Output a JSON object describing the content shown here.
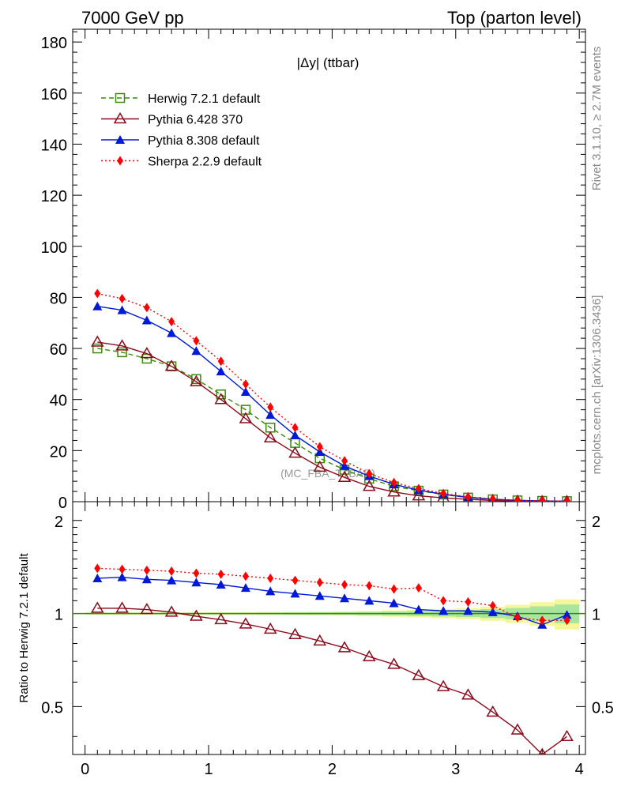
{
  "header": {
    "left": "7000 GeV pp",
    "right": "Top (parton level)"
  },
  "side_text": {
    "rivet": "Rivet 3.1.10, ≥ 2.7M events",
    "mcplots": "mcplots.cern.ch [arXiv:1306.3436]"
  },
  "chart_data": [
    {
      "type": "line",
      "panel": "main",
      "title": "|Δy| (ttbar)",
      "watermark": "(MC_FBA_TTBAR)",
      "xlim": [
        -0.1,
        4.05
      ],
      "ylim": [
        0,
        185
      ],
      "y_ticks": [
        0,
        20,
        40,
        60,
        80,
        100,
        120,
        140,
        160,
        180
      ],
      "x_ticks": [
        0,
        1,
        2,
        3,
        4
      ],
      "grid": false,
      "legend_position": "top-left",
      "x": [
        0.1,
        0.3,
        0.5,
        0.7,
        0.9,
        1.1,
        1.3,
        1.5,
        1.7,
        1.9,
        2.1,
        2.3,
        2.5,
        2.7,
        2.9,
        3.1,
        3.3,
        3.5,
        3.7,
        3.9
      ],
      "series": [
        {
          "name": "Herwig 7.2.1 default",
          "color": "#3a8a0a",
          "line": "dashed",
          "marker": "open-square",
          "values": [
            60,
            58.5,
            56,
            53,
            48,
            42,
            36,
            29,
            23,
            17,
            12.5,
            9,
            6,
            4.3,
            2.8,
            1.6,
            0.9,
            0.5,
            0.3,
            0.2
          ]
        },
        {
          "name": "Pythia 6.428 370",
          "color": "#8b0a1a",
          "line": "solid",
          "marker": "open-triangle",
          "values": [
            62.5,
            61,
            58,
            53,
            47,
            40,
            32.5,
            25,
            19,
            13.5,
            9.5,
            6,
            3.8,
            2.3,
            1.5,
            0.9,
            0.5,
            0.2,
            0.1,
            0.08
          ]
        },
        {
          "name": "Pythia 8.308 default",
          "color": "#0018d8",
          "line": "solid",
          "marker": "filled-triangle",
          "values": [
            76.5,
            75,
            71,
            66,
            59,
            51,
            43,
            34,
            26,
            19.5,
            14,
            10,
            6.8,
            4.5,
            2.9,
            1.7,
            1,
            0.5,
            0.3,
            0.2
          ]
        },
        {
          "name": "Sherpa 2.2.9 default",
          "color": "#ff0000",
          "line": "dotted",
          "marker": "filled-diamond",
          "values": [
            81.5,
            79.5,
            76,
            70.5,
            63,
            55,
            46,
            37,
            29,
            21.5,
            16,
            11,
            7.5,
            5.1,
            3.2,
            1.9,
            1,
            0.5,
            0.3,
            0.2
          ]
        }
      ]
    },
    {
      "type": "line",
      "panel": "ratio",
      "ylabel": "Ratio to Herwig 7.2.1 default",
      "scale": "log",
      "xlim": [
        -0.1,
        4.05
      ],
      "ylim": [
        0.35,
        2.3
      ],
      "y_ticks": [
        0.5,
        1,
        2
      ],
      "y_tick_labels": [
        "0.5",
        "1",
        "2"
      ],
      "x_ticks": [
        0,
        1,
        2,
        3,
        4
      ],
      "x_tick_labels": [
        "0",
        "1",
        "2",
        "3",
        "4"
      ],
      "grid": false,
      "x": [
        0.1,
        0.3,
        0.5,
        0.7,
        0.9,
        1.1,
        1.3,
        1.5,
        1.7,
        1.9,
        2.1,
        2.3,
        2.5,
        2.7,
        2.9,
        3.1,
        3.3,
        3.5,
        3.7,
        3.9
      ],
      "reference_line": 1,
      "series": [
        {
          "name": "Pythia 6.428 370",
          "color": "#8b0a1a",
          "line": "solid",
          "marker": "open-triangle",
          "values": [
            1.04,
            1.04,
            1.03,
            1.01,
            0.98,
            0.955,
            0.925,
            0.89,
            0.855,
            0.815,
            0.775,
            0.725,
            0.685,
            0.63,
            0.58,
            0.545,
            0.48,
            0.42,
            0.35,
            0.4
          ]
        },
        {
          "name": "Pythia 8.308 default",
          "color": "#0018d8",
          "line": "solid",
          "marker": "filled-triangle",
          "values": [
            1.3,
            1.31,
            1.29,
            1.28,
            1.26,
            1.24,
            1.21,
            1.18,
            1.16,
            1.14,
            1.12,
            1.1,
            1.08,
            1.03,
            1.02,
            1.02,
            1.01,
            0.98,
            0.92,
            0.99
          ]
        },
        {
          "name": "Sherpa 2.2.9 default",
          "color": "#ff0000",
          "line": "dotted",
          "marker": "filled-diamond",
          "values": [
            1.4,
            1.39,
            1.38,
            1.37,
            1.35,
            1.34,
            1.32,
            1.3,
            1.28,
            1.26,
            1.24,
            1.23,
            1.2,
            1.21,
            1.1,
            1.09,
            1.06,
            0.97,
            0.95,
            0.95
          ]
        }
      ]
    }
  ]
}
